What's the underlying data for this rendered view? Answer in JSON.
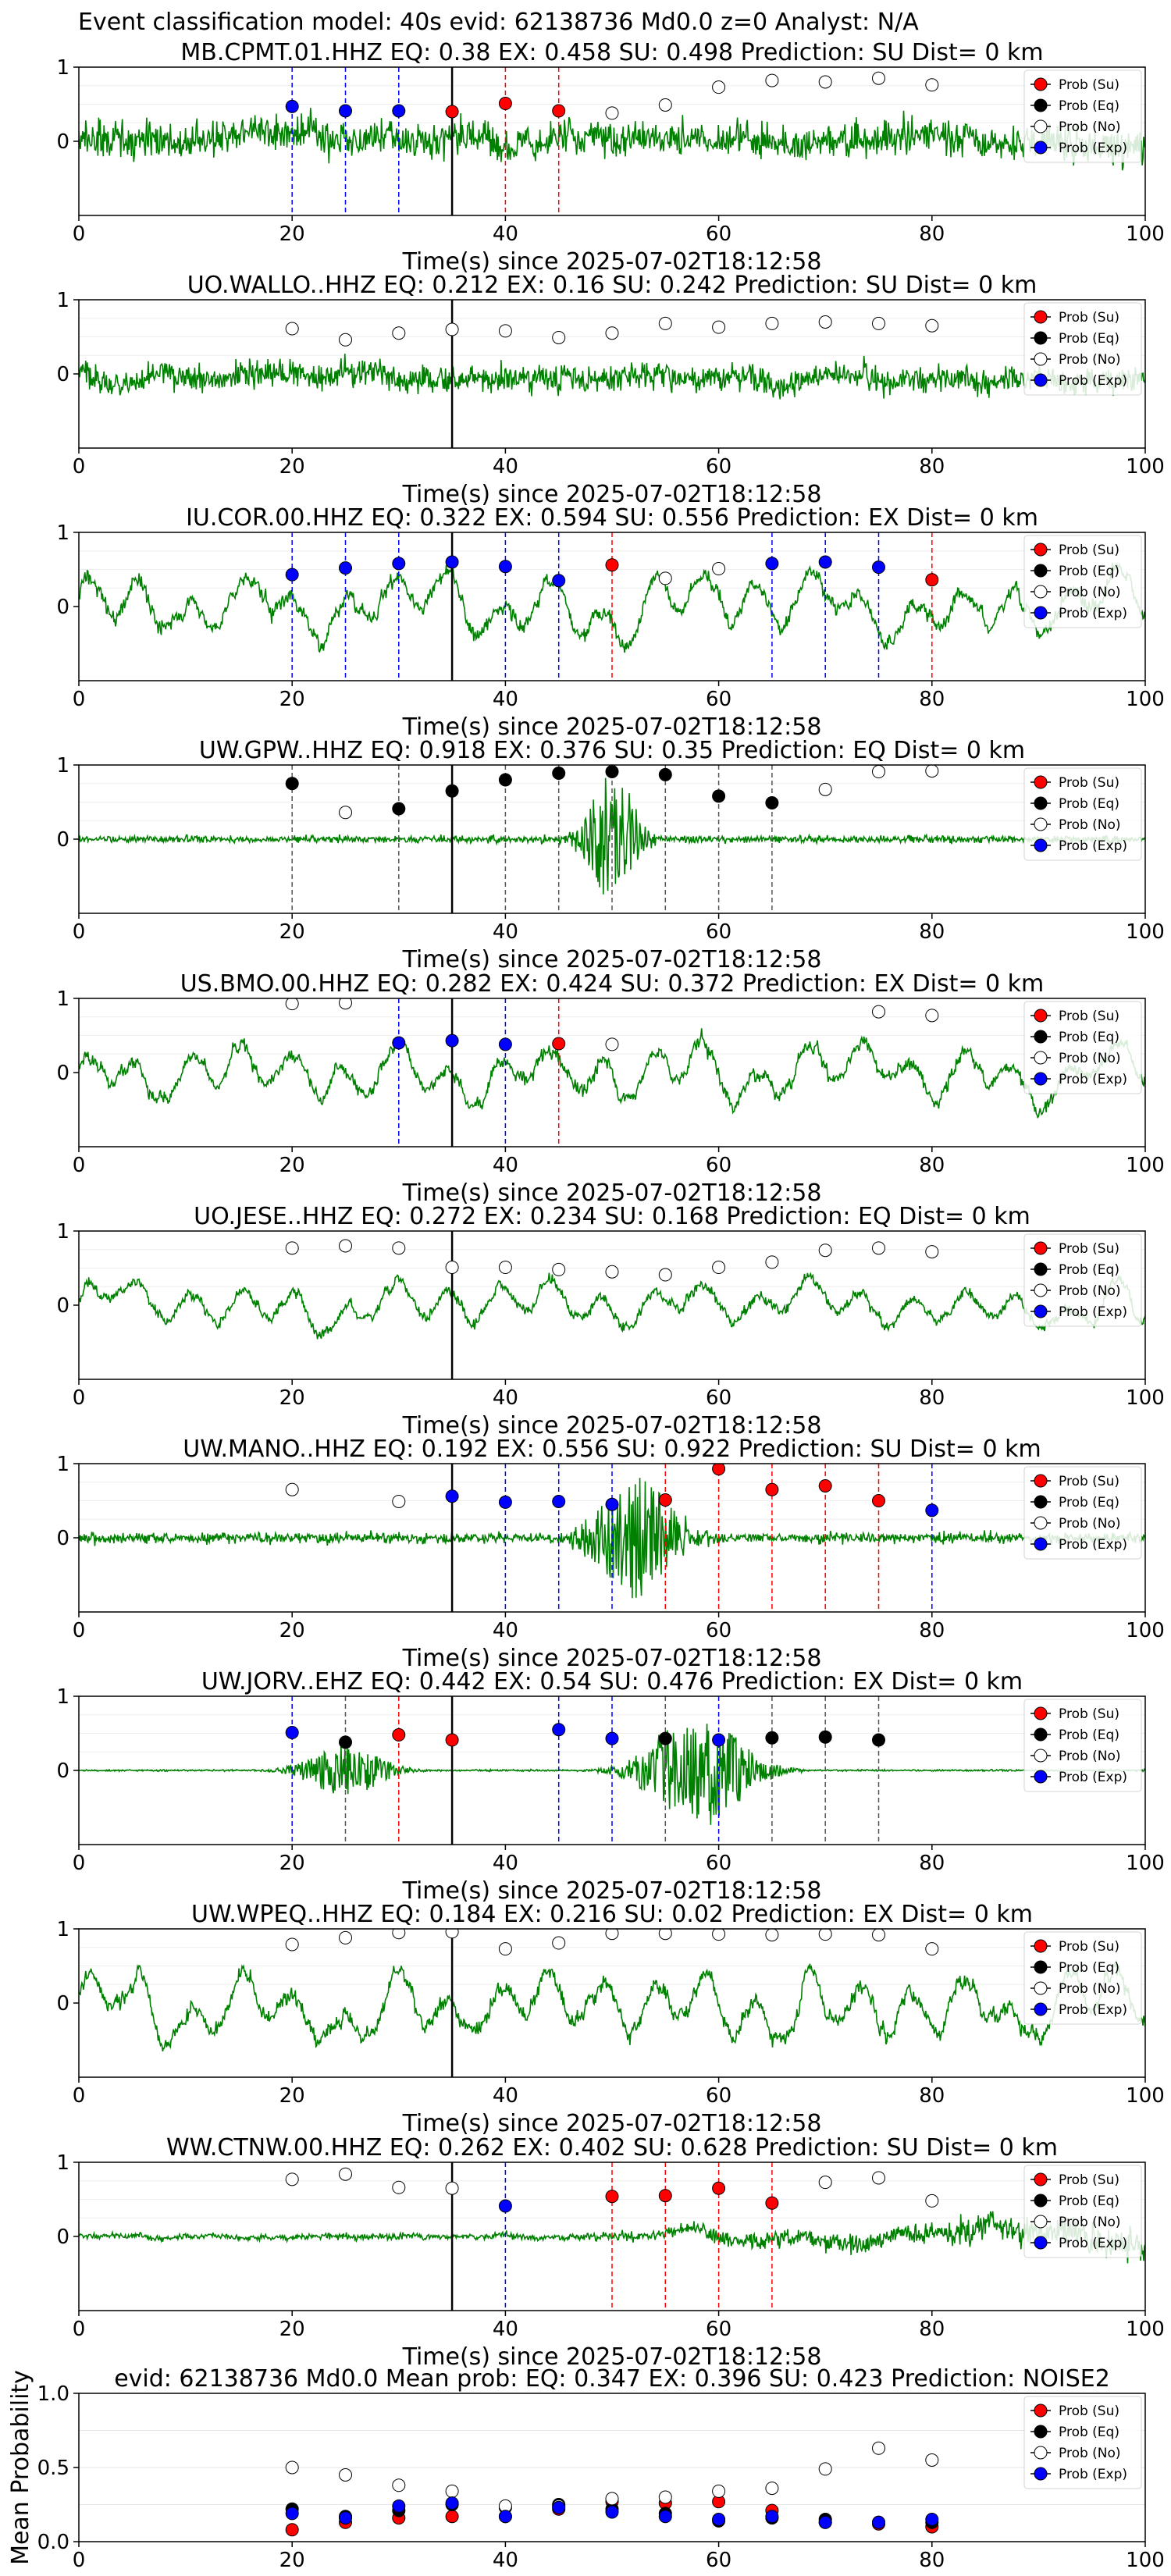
{
  "figure_title": "Event classification model: 40s evid: 62138736 Md0.0 z=0 Analyst: N/A",
  "legend_entries": [
    "Prob (Su)",
    "Prob (Eq)",
    "Prob (No)",
    "Prob (Exp)"
  ],
  "colors": {
    "waveform": "#008000",
    "su": "#ff0000",
    "eq": "#000000",
    "no": "#ffffff",
    "exp": "#0000ff",
    "vline_su": "#ff0000",
    "vline_eq": "#555555",
    "vline_exp": "#0000ff",
    "event_line": "#000000"
  },
  "chart_data": [
    {
      "type": "line",
      "title": "MB.CPMT.01.HHZ   EQ: 0.38   EX: 0.458   SU: 0.498   Prediction: SU    Dist= 0 km",
      "xlabel": "Time(s) since 2025-07-02T18:12:58",
      "ylabel": "",
      "xlim": [
        0,
        100
      ],
      "ylim": [
        -1,
        1
      ],
      "xticks": [
        "0",
        "20",
        "40",
        "60",
        "80",
        "100"
      ],
      "yticks": [
        "1",
        "0"
      ],
      "event_time": 35,
      "waveform_style": "noisy",
      "waveform_amplitude": 0.45,
      "legend": "right",
      "points": [
        {
          "x": 20,
          "y": 0.47,
          "cls": "exp"
        },
        {
          "x": 25,
          "y": 0.41,
          "cls": "exp"
        },
        {
          "x": 30,
          "y": 0.41,
          "cls": "exp"
        },
        {
          "x": 35,
          "y": 0.4,
          "cls": "su"
        },
        {
          "x": 40,
          "y": 0.51,
          "cls": "su"
        },
        {
          "x": 45,
          "y": 0.41,
          "cls": "su"
        },
        {
          "x": 50,
          "y": 0.38,
          "cls": "no"
        },
        {
          "x": 55,
          "y": 0.49,
          "cls": "no"
        },
        {
          "x": 60,
          "y": 0.73,
          "cls": "no"
        },
        {
          "x": 65,
          "y": 0.82,
          "cls": "no"
        },
        {
          "x": 70,
          "y": 0.8,
          "cls": "no"
        },
        {
          "x": 75,
          "y": 0.85,
          "cls": "no"
        },
        {
          "x": 80,
          "y": 0.76,
          "cls": "no"
        }
      ]
    },
    {
      "type": "line",
      "title": "UO.WALLO..HHZ   EQ: 0.212  EX: 0.16  SU: 0.242   Prediction: SU    Dist= 0 km",
      "xlabel": "Time(s) since 2025-07-02T18:12:58",
      "ylabel": "",
      "xlim": [
        0,
        100
      ],
      "ylim": [
        -1,
        1
      ],
      "xticks": [
        "0",
        "20",
        "40",
        "60",
        "80",
        "100"
      ],
      "yticks": [
        "1",
        "0"
      ],
      "event_time": 35,
      "waveform_style": "noisy",
      "waveform_amplitude": 0.35,
      "legend": "right",
      "points": [
        {
          "x": 20,
          "y": 0.61,
          "cls": "no"
        },
        {
          "x": 25,
          "y": 0.46,
          "cls": "no"
        },
        {
          "x": 30,
          "y": 0.55,
          "cls": "no"
        },
        {
          "x": 35,
          "y": 0.6,
          "cls": "no"
        },
        {
          "x": 40,
          "y": 0.58,
          "cls": "no"
        },
        {
          "x": 45,
          "y": 0.49,
          "cls": "no"
        },
        {
          "x": 50,
          "y": 0.55,
          "cls": "no"
        },
        {
          "x": 55,
          "y": 0.68,
          "cls": "no"
        },
        {
          "x": 60,
          "y": 0.63,
          "cls": "no"
        },
        {
          "x": 65,
          "y": 0.68,
          "cls": "no"
        },
        {
          "x": 70,
          "y": 0.7,
          "cls": "no"
        },
        {
          "x": 75,
          "y": 0.68,
          "cls": "no"
        },
        {
          "x": 80,
          "y": 0.65,
          "cls": "no"
        }
      ]
    },
    {
      "type": "line",
      "title": "IU.COR.00.HHZ   EQ: 0.322  EX: 0.594  SU: 0.556   Prediction: EX    Dist= 0 km",
      "xlabel": "Time(s) since 2025-07-02T18:12:58",
      "ylabel": "",
      "xlim": [
        0,
        100
      ],
      "ylim": [
        -1,
        1
      ],
      "xticks": [
        "0",
        "20",
        "40",
        "60",
        "80",
        "100"
      ],
      "yticks": [
        "1",
        "0"
      ],
      "event_time": 35,
      "waveform_style": "wavy",
      "waveform_amplitude": 0.55,
      "legend": "right",
      "points": [
        {
          "x": 20,
          "y": 0.43,
          "cls": "exp"
        },
        {
          "x": 25,
          "y": 0.52,
          "cls": "exp"
        },
        {
          "x": 30,
          "y": 0.58,
          "cls": "exp"
        },
        {
          "x": 35,
          "y": 0.6,
          "cls": "exp"
        },
        {
          "x": 40,
          "y": 0.54,
          "cls": "exp"
        },
        {
          "x": 45,
          "y": 0.35,
          "cls": "exp"
        },
        {
          "x": 50,
          "y": 0.56,
          "cls": "su"
        },
        {
          "x": 55,
          "y": 0.38,
          "cls": "no"
        },
        {
          "x": 60,
          "y": 0.51,
          "cls": "no"
        },
        {
          "x": 65,
          "y": 0.58,
          "cls": "exp"
        },
        {
          "x": 70,
          "y": 0.6,
          "cls": "exp"
        },
        {
          "x": 75,
          "y": 0.53,
          "cls": "exp"
        },
        {
          "x": 80,
          "y": 0.36,
          "cls": "su"
        }
      ]
    },
    {
      "type": "line",
      "title": "UW.GPW..HHZ   EQ: 0.918  EX: 0.376  SU: 0.35   Prediction: EQ    Dist= 0 km",
      "xlabel": "Time(s) since 2025-07-02T18:12:58",
      "ylabel": "",
      "xlim": [
        0,
        100
      ],
      "ylim": [
        -1,
        1
      ],
      "xticks": [
        "0",
        "20",
        "40",
        "60",
        "80",
        "100"
      ],
      "yticks": [
        "1",
        "0"
      ],
      "event_time": 35,
      "waveform_style": "quake",
      "waveform_amplitude": 0.08,
      "burst_center": 50,
      "burst_width": 2.5,
      "burst_amplitude": 0.9,
      "legend": "right",
      "points": [
        {
          "x": 20,
          "y": 0.75,
          "cls": "eq"
        },
        {
          "x": 25,
          "y": 0.36,
          "cls": "no"
        },
        {
          "x": 30,
          "y": 0.41,
          "cls": "eq"
        },
        {
          "x": 35,
          "y": 0.65,
          "cls": "eq"
        },
        {
          "x": 40,
          "y": 0.8,
          "cls": "eq"
        },
        {
          "x": 45,
          "y": 0.89,
          "cls": "eq"
        },
        {
          "x": 50,
          "y": 0.91,
          "cls": "eq"
        },
        {
          "x": 55,
          "y": 0.87,
          "cls": "eq"
        },
        {
          "x": 60,
          "y": 0.58,
          "cls": "eq"
        },
        {
          "x": 65,
          "y": 0.49,
          "cls": "eq"
        },
        {
          "x": 70,
          "y": 0.67,
          "cls": "no"
        },
        {
          "x": 75,
          "y": 0.91,
          "cls": "no"
        },
        {
          "x": 80,
          "y": 0.92,
          "cls": "no"
        }
      ]
    },
    {
      "type": "line",
      "title": "US.BMO.00.HHZ   EQ: 0.282  EX: 0.424  SU: 0.372   Prediction: EX    Dist= 0 km",
      "xlabel": "Time(s) since 2025-07-02T18:12:58",
      "ylabel": "",
      "xlim": [
        0,
        100
      ],
      "ylim": [
        -1,
        1
      ],
      "xticks": [
        "0",
        "20",
        "40",
        "60",
        "80",
        "100"
      ],
      "yticks": [
        "1",
        "0"
      ],
      "event_time": 35,
      "waveform_style": "wavy",
      "waveform_amplitude": 0.5,
      "legend": "right",
      "points": [
        {
          "x": 20,
          "y": 0.93,
          "cls": "no"
        },
        {
          "x": 25,
          "y": 0.94,
          "cls": "no"
        },
        {
          "x": 30,
          "y": 0.4,
          "cls": "exp"
        },
        {
          "x": 35,
          "y": 0.43,
          "cls": "exp"
        },
        {
          "x": 40,
          "y": 0.38,
          "cls": "exp"
        },
        {
          "x": 45,
          "y": 0.39,
          "cls": "su"
        },
        {
          "x": 50,
          "y": 0.38,
          "cls": "no"
        },
        {
          "x": 75,
          "y": 0.82,
          "cls": "no"
        },
        {
          "x": 80,
          "y": 0.77,
          "cls": "no"
        }
      ]
    },
    {
      "type": "line",
      "title": "UO.JESE..HHZ   EQ: 0.272  EX: 0.234  SU: 0.168   Prediction: EQ    Dist= 0 km",
      "xlabel": "Time(s) since 2025-07-02T18:12:58",
      "ylabel": "",
      "xlim": [
        0,
        100
      ],
      "ylim": [
        -1,
        1
      ],
      "xticks": [
        "0",
        "20",
        "40",
        "60",
        "80",
        "100"
      ],
      "yticks": [
        "1",
        "0"
      ],
      "event_time": 35,
      "waveform_style": "wavy",
      "waveform_amplitude": 0.4,
      "legend": "right",
      "points": [
        {
          "x": 20,
          "y": 0.77,
          "cls": "no"
        },
        {
          "x": 25,
          "y": 0.8,
          "cls": "no"
        },
        {
          "x": 30,
          "y": 0.77,
          "cls": "no"
        },
        {
          "x": 35,
          "y": 0.51,
          "cls": "no"
        },
        {
          "x": 40,
          "y": 0.51,
          "cls": "no"
        },
        {
          "x": 45,
          "y": 0.48,
          "cls": "no"
        },
        {
          "x": 50,
          "y": 0.45,
          "cls": "no"
        },
        {
          "x": 55,
          "y": 0.41,
          "cls": "no"
        },
        {
          "x": 60,
          "y": 0.51,
          "cls": "no"
        },
        {
          "x": 65,
          "y": 0.58,
          "cls": "no"
        },
        {
          "x": 70,
          "y": 0.74,
          "cls": "no"
        },
        {
          "x": 75,
          "y": 0.77,
          "cls": "no"
        },
        {
          "x": 80,
          "y": 0.72,
          "cls": "no"
        }
      ]
    },
    {
      "type": "line",
      "title": "UW.MANO..HHZ   EQ: 0.192  EX: 0.556  SU: 0.922   Prediction: SU    Dist= 0 km",
      "xlabel": "Time(s) since 2025-07-02T18:12:58",
      "ylabel": "",
      "xlim": [
        0,
        100
      ],
      "ylim": [
        -1,
        1
      ],
      "xticks": [
        "0",
        "20",
        "40",
        "60",
        "80",
        "100"
      ],
      "yticks": [
        "1",
        "0"
      ],
      "event_time": 35,
      "waveform_style": "quake",
      "waveform_amplitude": 0.12,
      "burst_center": 52,
      "burst_width": 4,
      "burst_amplitude": 0.9,
      "legend": "right",
      "points": [
        {
          "x": 20,
          "y": 0.65,
          "cls": "no"
        },
        {
          "x": 30,
          "y": 0.49,
          "cls": "no"
        },
        {
          "x": 35,
          "y": 0.56,
          "cls": "exp"
        },
        {
          "x": 40,
          "y": 0.48,
          "cls": "exp"
        },
        {
          "x": 45,
          "y": 0.49,
          "cls": "exp"
        },
        {
          "x": 50,
          "y": 0.45,
          "cls": "exp"
        },
        {
          "x": 55,
          "y": 0.51,
          "cls": "su"
        },
        {
          "x": 60,
          "y": 0.93,
          "cls": "su"
        },
        {
          "x": 65,
          "y": 0.65,
          "cls": "su"
        },
        {
          "x": 70,
          "y": 0.7,
          "cls": "su"
        },
        {
          "x": 75,
          "y": 0.5,
          "cls": "su"
        },
        {
          "x": 80,
          "y": 0.37,
          "cls": "exp"
        }
      ]
    },
    {
      "type": "line",
      "title": "UW.JORV..EHZ   EQ: 0.442  EX: 0.54  SU: 0.476   Prediction: EX    Dist= 0 km",
      "xlabel": "Time(s) since 2025-07-02T18:12:58",
      "ylabel": "",
      "xlim": [
        0,
        100
      ],
      "ylim": [
        -1,
        1
      ],
      "xticks": [
        "0",
        "20",
        "40",
        "60",
        "80",
        "100"
      ],
      "yticks": [
        "1",
        "0"
      ],
      "event_time": 35,
      "waveform_style": "double",
      "waveform_amplitude": 0.02,
      "bursts": [
        {
          "center": 25,
          "width": 4,
          "amplitude": 0.35
        },
        {
          "center": 58,
          "width": 5,
          "amplitude": 0.8
        }
      ],
      "legend": "right",
      "points": [
        {
          "x": 20,
          "y": 0.51,
          "cls": "exp"
        },
        {
          "x": 25,
          "y": 0.38,
          "cls": "eq"
        },
        {
          "x": 30,
          "y": 0.48,
          "cls": "su"
        },
        {
          "x": 35,
          "y": 0.41,
          "cls": "su"
        },
        {
          "x": 45,
          "y": 0.55,
          "cls": "exp"
        },
        {
          "x": 50,
          "y": 0.43,
          "cls": "exp"
        },
        {
          "x": 55,
          "y": 0.43,
          "cls": "eq"
        },
        {
          "x": 60,
          "y": 0.41,
          "cls": "exp"
        },
        {
          "x": 65,
          "y": 0.44,
          "cls": "eq"
        },
        {
          "x": 70,
          "y": 0.45,
          "cls": "eq"
        },
        {
          "x": 75,
          "y": 0.41,
          "cls": "eq"
        }
      ]
    },
    {
      "type": "line",
      "title": "UW.WPEQ..HHZ   EQ: 0.184  EX: 0.216  SU: 0.02   Prediction: EX    Dist= 0 km",
      "xlabel": "Time(s) since 2025-07-02T18:12:58",
      "ylabel": "",
      "xlim": [
        0,
        100
      ],
      "ylim": [
        -1,
        1
      ],
      "xticks": [
        "0",
        "20",
        "40",
        "60",
        "80",
        "100"
      ],
      "yticks": [
        "1",
        "0"
      ],
      "event_time": 35,
      "waveform_style": "wavy",
      "waveform_amplitude": 0.6,
      "legend": "right",
      "points": [
        {
          "x": 20,
          "y": 0.79,
          "cls": "no"
        },
        {
          "x": 25,
          "y": 0.88,
          "cls": "no"
        },
        {
          "x": 30,
          "y": 0.95,
          "cls": "no"
        },
        {
          "x": 35,
          "y": 0.96,
          "cls": "no"
        },
        {
          "x": 40,
          "y": 0.73,
          "cls": "no"
        },
        {
          "x": 45,
          "y": 0.81,
          "cls": "no"
        },
        {
          "x": 50,
          "y": 0.94,
          "cls": "no"
        },
        {
          "x": 55,
          "y": 0.94,
          "cls": "no"
        },
        {
          "x": 60,
          "y": 0.93,
          "cls": "no"
        },
        {
          "x": 65,
          "y": 0.92,
          "cls": "no"
        },
        {
          "x": 70,
          "y": 0.93,
          "cls": "no"
        },
        {
          "x": 75,
          "y": 0.92,
          "cls": "no"
        },
        {
          "x": 80,
          "y": 0.73,
          "cls": "no"
        }
      ]
    },
    {
      "type": "line",
      "title": "WW.CTNW.00.HHZ   EQ: 0.262  EX: 0.402  SU: 0.628   Prediction: SU    Dist= 0 km",
      "xlabel": "Time(s) since 2025-07-02T18:12:58",
      "ylabel": "",
      "xlim": [
        0,
        100
      ],
      "ylim": [
        -1,
        1
      ],
      "xticks": [
        "0",
        "20",
        "40",
        "60",
        "80",
        "100"
      ],
      "yticks": [
        "1",
        "0"
      ],
      "event_time": 35,
      "waveform_style": "growing",
      "waveform_amplitude": 0.45,
      "legend": "right",
      "points": [
        {
          "x": 20,
          "y": 0.77,
          "cls": "no"
        },
        {
          "x": 25,
          "y": 0.84,
          "cls": "no"
        },
        {
          "x": 30,
          "y": 0.66,
          "cls": "no"
        },
        {
          "x": 35,
          "y": 0.65,
          "cls": "no"
        },
        {
          "x": 40,
          "y": 0.41,
          "cls": "exp"
        },
        {
          "x": 50,
          "y": 0.54,
          "cls": "su"
        },
        {
          "x": 55,
          "y": 0.55,
          "cls": "su"
        },
        {
          "x": 60,
          "y": 0.65,
          "cls": "su"
        },
        {
          "x": 65,
          "y": 0.45,
          "cls": "su"
        },
        {
          "x": 70,
          "y": 0.73,
          "cls": "no"
        },
        {
          "x": 75,
          "y": 0.79,
          "cls": "no"
        },
        {
          "x": 80,
          "y": 0.48,
          "cls": "no"
        }
      ]
    },
    {
      "type": "scatter",
      "title": "evid: 62138736  Md0.0   Mean prob:   EQ: 0.347  EX: 0.396  SU: 0.423   Prediction: NOISE2",
      "xlabel": "",
      "ylabel": "Mean Probability",
      "xlim": [
        0,
        100
      ],
      "ylim": [
        0,
        1
      ],
      "xticks": [
        "0",
        "20",
        "40",
        "60",
        "80",
        "100"
      ],
      "yticks": [
        "1.0",
        "0.5",
        "0.0"
      ],
      "legend": "right",
      "series": [
        {
          "name": "Prob (Su)",
          "cls": "su",
          "x": [
            20,
            25,
            30,
            35,
            40,
            45,
            50,
            55,
            60,
            65,
            70,
            75,
            80
          ],
          "y": [
            0.08,
            0.13,
            0.16,
            0.17,
            0.17,
            0.22,
            0.27,
            0.26,
            0.27,
            0.21,
            0.13,
            0.12,
            0.1
          ]
        },
        {
          "name": "Prob (Eq)",
          "cls": "eq",
          "x": [
            20,
            25,
            30,
            35,
            40,
            45,
            50,
            55,
            60,
            65,
            70,
            75,
            80
          ],
          "y": [
            0.22,
            0.17,
            0.21,
            0.25,
            0.23,
            0.25,
            0.22,
            0.19,
            0.14,
            0.16,
            0.15,
            0.13,
            0.13
          ]
        },
        {
          "name": "Prob (No)",
          "cls": "no",
          "x": [
            20,
            25,
            30,
            35,
            40,
            45,
            50,
            55,
            60,
            65,
            70,
            75,
            80
          ],
          "y": [
            0.5,
            0.45,
            0.38,
            0.34,
            0.24,
            0.24,
            0.29,
            0.3,
            0.34,
            0.36,
            0.49,
            0.63,
            0.55
          ]
        },
        {
          "name": "Prob (Exp)",
          "cls": "exp",
          "x": [
            20,
            25,
            30,
            35,
            40,
            45,
            50,
            55,
            60,
            65,
            70,
            75,
            80
          ],
          "y": [
            0.19,
            0.16,
            0.24,
            0.26,
            0.17,
            0.23,
            0.2,
            0.17,
            0.15,
            0.17,
            0.13,
            0.13,
            0.15
          ]
        }
      ]
    }
  ]
}
